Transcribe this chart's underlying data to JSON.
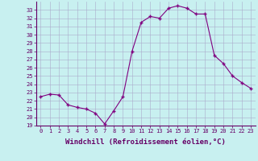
{
  "hours": [
    0,
    1,
    2,
    3,
    4,
    5,
    6,
    7,
    8,
    9,
    10,
    11,
    12,
    13,
    14,
    15,
    16,
    17,
    18,
    19,
    20,
    21,
    22,
    23
  ],
  "values": [
    22.5,
    22.8,
    22.7,
    21.5,
    21.2,
    21.0,
    20.5,
    19.2,
    20.8,
    22.5,
    28.0,
    31.5,
    32.2,
    32.0,
    33.2,
    33.5,
    33.2,
    32.5,
    32.5,
    27.5,
    26.5,
    25.0,
    24.2,
    23.5
  ],
  "ylim": [
    19,
    34
  ],
  "yticks": [
    19,
    20,
    21,
    22,
    23,
    24,
    25,
    26,
    27,
    28,
    29,
    30,
    31,
    32,
    33
  ],
  "xticks": [
    0,
    1,
    2,
    3,
    4,
    5,
    6,
    7,
    8,
    9,
    10,
    11,
    12,
    13,
    14,
    15,
    16,
    17,
    18,
    19,
    20,
    21,
    22,
    23
  ],
  "xlabel": "Windchill (Refroidissement éolien,°C)",
  "line_color": "#800080",
  "marker": "+",
  "bg_color": "#c8f0f0",
  "grid_color": "#aaaacc",
  "title_color": "#660066",
  "tick_fontsize": 5.0,
  "label_fontsize": 6.5
}
